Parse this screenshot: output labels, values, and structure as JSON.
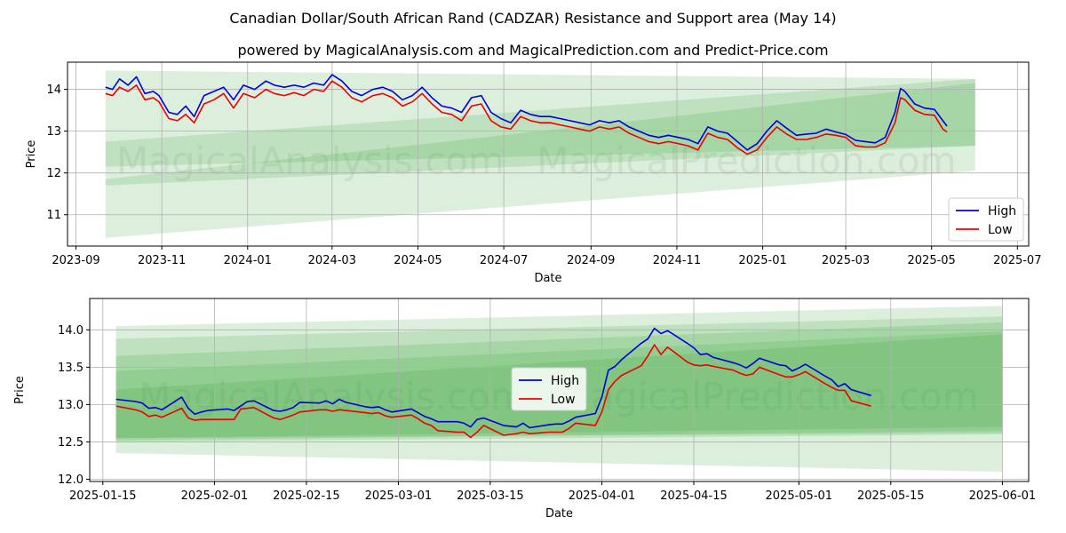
{
  "title": "Canadian Dollar/South African Rand (CADZAR) Resistance and Support area (May 14)",
  "subtitle": "powered by MagicalAnalysis.com and MagicalPrediction.com and Predict-Price.com",
  "watermarks": [
    "MagicalAnalysis.com",
    "MagicalPrediction.com"
  ],
  "colors": {
    "high": "#0000dd",
    "low": "#ee0000",
    "band": "#2e9e2e"
  },
  "chart_data": [
    {
      "type": "line",
      "xlabel": "Date",
      "ylabel": "Price",
      "xlim": [
        "2023-08-26",
        "2025-07-09"
      ],
      "ylim": [
        10.25,
        14.65
      ],
      "x_ticks": [
        "2023-09",
        "2023-11",
        "2024-01",
        "2024-03",
        "2024-05",
        "2024-07",
        "2024-09",
        "2024-11",
        "2025-01",
        "2025-03",
        "2025-05",
        "2025-07"
      ],
      "y_ticks": [
        11,
        12,
        13,
        14
      ],
      "grid": true,
      "legend": "lower-right",
      "band_range": [
        "2023-09-22",
        "2025-06-01"
      ],
      "bands": [
        {
          "start": [
            13.35,
            14.45
          ],
          "end": [
            13.95,
            14.25
          ]
        },
        {
          "start": [
            12.15,
            12.75
          ],
          "end": [
            12.65,
            14.25
          ]
        },
        {
          "start": [
            11.7,
            11.85
          ],
          "end": [
            12.65,
            14.15
          ]
        },
        {
          "start": [
            10.45,
            13.35
          ],
          "end": [
            12.05,
            13.95
          ]
        }
      ],
      "series": [
        {
          "name": "High",
          "x": [
            "2023-09-22",
            "2023-09-27",
            "2023-10-02",
            "2023-10-08",
            "2023-10-14",
            "2023-10-20",
            "2023-10-26",
            "2023-10-30",
            "2023-11-06",
            "2023-11-12",
            "2023-11-18",
            "2023-11-24",
            "2023-12-01",
            "2023-12-08",
            "2023-12-15",
            "2023-12-22",
            "2023-12-29",
            "2024-01-06",
            "2024-01-14",
            "2024-01-20",
            "2024-01-27",
            "2024-02-03",
            "2024-02-10",
            "2024-02-17",
            "2024-02-24",
            "2024-03-01",
            "2024-03-08",
            "2024-03-15",
            "2024-03-22",
            "2024-03-30",
            "2024-04-06",
            "2024-04-13",
            "2024-04-20",
            "2024-04-27",
            "2024-05-04",
            "2024-05-11",
            "2024-05-18",
            "2024-05-25",
            "2024-06-01",
            "2024-06-08",
            "2024-06-15",
            "2024-06-22",
            "2024-06-29",
            "2024-07-06",
            "2024-07-13",
            "2024-07-20",
            "2024-07-27",
            "2024-08-03",
            "2024-08-10",
            "2024-08-17",
            "2024-08-24",
            "2024-08-31",
            "2024-09-07",
            "2024-09-14",
            "2024-09-21",
            "2024-09-28",
            "2024-10-05",
            "2024-10-12",
            "2024-10-19",
            "2024-10-26",
            "2024-11-02",
            "2024-11-09",
            "2024-11-16",
            "2024-11-23",
            "2024-11-30",
            "2024-12-07",
            "2024-12-14",
            "2024-12-21",
            "2024-12-28",
            "2025-01-04",
            "2025-01-11",
            "2025-01-18",
            "2025-01-25",
            "2025-02-01",
            "2025-02-08",
            "2025-02-15",
            "2025-02-22",
            "2025-03-01",
            "2025-03-08",
            "2025-03-15",
            "2025-03-22",
            "2025-03-29",
            "2025-04-05",
            "2025-04-09",
            "2025-04-12",
            "2025-04-19",
            "2025-04-26",
            "2025-05-03",
            "2025-05-09",
            "2025-05-12"
          ],
          "values": [
            14.05,
            14.0,
            14.25,
            14.1,
            14.3,
            13.9,
            13.95,
            13.85,
            13.45,
            13.4,
            13.6,
            13.35,
            13.85,
            13.95,
            14.05,
            13.75,
            14.1,
            14.0,
            14.2,
            14.1,
            14.05,
            14.1,
            14.05,
            14.15,
            14.1,
            14.35,
            14.2,
            13.95,
            13.85,
            14.0,
            14.05,
            13.95,
            13.75,
            13.85,
            14.05,
            13.8,
            13.6,
            13.55,
            13.45,
            13.8,
            13.85,
            13.45,
            13.3,
            13.2,
            13.5,
            13.4,
            13.35,
            13.35,
            13.3,
            13.25,
            13.2,
            13.15,
            13.25,
            13.2,
            13.25,
            13.1,
            13.0,
            12.9,
            12.85,
            12.9,
            12.85,
            12.8,
            12.7,
            13.1,
            13.0,
            12.95,
            12.75,
            12.55,
            12.7,
            13.0,
            13.25,
            13.07,
            12.9,
            12.93,
            12.95,
            13.05,
            12.98,
            12.92,
            12.78,
            12.75,
            12.72,
            12.85,
            13.45,
            14.02,
            13.95,
            13.65,
            13.55,
            13.52,
            13.25,
            13.12
          ]
        },
        {
          "name": "Low",
          "x": [
            "2023-09-22",
            "2023-09-27",
            "2023-10-02",
            "2023-10-08",
            "2023-10-14",
            "2023-10-20",
            "2023-10-26",
            "2023-10-30",
            "2023-11-06",
            "2023-11-12",
            "2023-11-18",
            "2023-11-24",
            "2023-12-01",
            "2023-12-08",
            "2023-12-15",
            "2023-12-22",
            "2023-12-29",
            "2024-01-06",
            "2024-01-14",
            "2024-01-20",
            "2024-01-27",
            "2024-02-03",
            "2024-02-10",
            "2024-02-17",
            "2024-02-24",
            "2024-03-01",
            "2024-03-08",
            "2024-03-15",
            "2024-03-22",
            "2024-03-30",
            "2024-04-06",
            "2024-04-13",
            "2024-04-20",
            "2024-04-27",
            "2024-05-04",
            "2024-05-11",
            "2024-05-18",
            "2024-05-25",
            "2024-06-01",
            "2024-06-08",
            "2024-06-15",
            "2024-06-22",
            "2024-06-29",
            "2024-07-06",
            "2024-07-13",
            "2024-07-20",
            "2024-07-27",
            "2024-08-03",
            "2024-08-10",
            "2024-08-17",
            "2024-08-24",
            "2024-08-31",
            "2024-09-07",
            "2024-09-14",
            "2024-09-21",
            "2024-09-28",
            "2024-10-05",
            "2024-10-12",
            "2024-10-19",
            "2024-10-26",
            "2024-11-02",
            "2024-11-09",
            "2024-11-16",
            "2024-11-23",
            "2024-11-30",
            "2024-12-07",
            "2024-12-14",
            "2024-12-21",
            "2024-12-28",
            "2025-01-04",
            "2025-01-11",
            "2025-01-18",
            "2025-01-25",
            "2025-02-01",
            "2025-02-08",
            "2025-02-15",
            "2025-02-22",
            "2025-03-01",
            "2025-03-08",
            "2025-03-15",
            "2025-03-22",
            "2025-03-29",
            "2025-04-05",
            "2025-04-09",
            "2025-04-12",
            "2025-04-19",
            "2025-04-26",
            "2025-05-03",
            "2025-05-09",
            "2025-05-12"
          ],
          "values": [
            13.9,
            13.85,
            14.05,
            13.95,
            14.1,
            13.75,
            13.8,
            13.7,
            13.3,
            13.25,
            13.4,
            13.2,
            13.65,
            13.75,
            13.9,
            13.55,
            13.9,
            13.8,
            14.0,
            13.9,
            13.85,
            13.92,
            13.85,
            14.0,
            13.95,
            14.2,
            14.05,
            13.8,
            13.7,
            13.85,
            13.9,
            13.8,
            13.6,
            13.7,
            13.9,
            13.65,
            13.45,
            13.4,
            13.25,
            13.6,
            13.65,
            13.25,
            13.1,
            13.05,
            13.35,
            13.25,
            13.2,
            13.2,
            13.15,
            13.1,
            13.05,
            13.0,
            13.1,
            13.05,
            13.1,
            12.95,
            12.85,
            12.75,
            12.7,
            12.75,
            12.7,
            12.65,
            12.55,
            12.95,
            12.85,
            12.8,
            12.6,
            12.45,
            12.55,
            12.85,
            13.1,
            12.93,
            12.8,
            12.8,
            12.85,
            12.93,
            12.9,
            12.85,
            12.65,
            12.62,
            12.62,
            12.72,
            13.2,
            13.8,
            13.75,
            13.5,
            13.4,
            13.38,
            13.05,
            12.98
          ]
        }
      ]
    },
    {
      "type": "line",
      "xlabel": "Date",
      "ylabel": "Price",
      "xlim": [
        "2025-01-13",
        "2025-06-05"
      ],
      "ylim": [
        11.97,
        14.42
      ],
      "x_ticks": [
        "2025-01-15",
        "2025-02-01",
        "2025-02-15",
        "2025-03-01",
        "2025-03-15",
        "2025-04-01",
        "2025-04-15",
        "2025-05-01",
        "2025-05-15",
        "2025-06-01"
      ],
      "y_ticks": [
        "12.0",
        "12.5",
        "13.0",
        "13.5",
        "14.0"
      ],
      "grid": true,
      "legend": "center",
      "band_range": [
        "2025-01-17",
        "2025-06-01"
      ],
      "bands": [
        {
          "start": [
            12.35,
            14.05
          ],
          "end": [
            12.1,
            14.32
          ]
        },
        {
          "start": [
            12.5,
            13.88
          ],
          "end": [
            12.6,
            14.18
          ]
        },
        {
          "start": [
            12.52,
            13.65
          ],
          "end": [
            12.65,
            14.1
          ]
        },
        {
          "start": [
            12.55,
            13.45
          ],
          "end": [
            12.7,
            13.98
          ]
        },
        {
          "start": [
            12.55,
            13.2
          ],
          "end": [
            12.62,
            13.94
          ]
        }
      ],
      "series": [
        {
          "name": "High",
          "x": [
            "2025-01-17",
            "2025-01-20",
            "2025-01-21",
            "2025-01-22",
            "2025-01-23",
            "2025-01-24",
            "2025-01-27",
            "2025-01-28",
            "2025-01-29",
            "2025-01-30",
            "2025-01-31",
            "2025-02-03",
            "2025-02-04",
            "2025-02-05",
            "2025-02-06",
            "2025-02-07",
            "2025-02-10",
            "2025-02-11",
            "2025-02-12",
            "2025-02-13",
            "2025-02-14",
            "2025-02-17",
            "2025-02-18",
            "2025-02-19",
            "2025-02-20",
            "2025-02-21",
            "2025-02-24",
            "2025-02-25",
            "2025-02-26",
            "2025-02-27",
            "2025-02-28",
            "2025-03-03",
            "2025-03-04",
            "2025-03-05",
            "2025-03-06",
            "2025-03-07",
            "2025-03-10",
            "2025-03-11",
            "2025-03-12",
            "2025-03-13",
            "2025-03-14",
            "2025-03-17",
            "2025-03-18",
            "2025-03-19",
            "2025-03-20",
            "2025-03-21",
            "2025-03-24",
            "2025-03-25",
            "2025-03-26",
            "2025-03-27",
            "2025-03-28",
            "2025-03-31",
            "2025-04-01",
            "2025-04-02",
            "2025-04-03",
            "2025-04-04",
            "2025-04-07",
            "2025-04-08",
            "2025-04-09",
            "2025-04-10",
            "2025-04-11",
            "2025-04-14",
            "2025-04-15",
            "2025-04-16",
            "2025-04-17",
            "2025-04-18",
            "2025-04-21",
            "2025-04-22",
            "2025-04-23",
            "2025-04-24",
            "2025-04-25",
            "2025-04-28",
            "2025-04-29",
            "2025-04-30",
            "2025-05-01",
            "2025-05-02",
            "2025-05-05",
            "2025-05-06",
            "2025-05-07",
            "2025-05-08",
            "2025-05-09",
            "2025-05-12"
          ],
          "values": [
            13.07,
            13.04,
            13.02,
            12.95,
            12.96,
            12.93,
            13.1,
            12.95,
            12.87,
            12.9,
            12.92,
            12.94,
            12.92,
            12.98,
            13.04,
            13.05,
            12.92,
            12.91,
            12.93,
            12.96,
            13.03,
            13.02,
            13.05,
            13.01,
            13.07,
            13.03,
            12.97,
            12.96,
            12.97,
            12.93,
            12.9,
            12.94,
            12.89,
            12.84,
            12.81,
            12.77,
            12.77,
            12.75,
            12.7,
            12.8,
            12.82,
            12.72,
            12.71,
            12.7,
            12.75,
            12.69,
            12.73,
            12.74,
            12.74,
            12.78,
            12.83,
            12.88,
            13.1,
            13.46,
            13.51,
            13.6,
            13.82,
            13.88,
            14.02,
            13.95,
            13.99,
            13.82,
            13.76,
            13.67,
            13.68,
            13.63,
            13.56,
            13.53,
            13.49,
            13.55,
            13.62,
            13.53,
            13.52,
            13.45,
            13.49,
            13.54,
            13.38,
            13.33,
            13.24,
            13.28,
            13.2,
            13.12
          ]
        },
        {
          "name": "Low",
          "x": [
            "2025-01-17",
            "2025-01-20",
            "2025-01-21",
            "2025-01-22",
            "2025-01-23",
            "2025-01-24",
            "2025-01-27",
            "2025-01-28",
            "2025-01-29",
            "2025-01-30",
            "2025-01-31",
            "2025-02-03",
            "2025-02-04",
            "2025-02-05",
            "2025-02-06",
            "2025-02-07",
            "2025-02-10",
            "2025-02-11",
            "2025-02-12",
            "2025-02-13",
            "2025-02-14",
            "2025-02-17",
            "2025-02-18",
            "2025-02-19",
            "2025-02-20",
            "2025-02-21",
            "2025-02-24",
            "2025-02-25",
            "2025-02-26",
            "2025-02-27",
            "2025-02-28",
            "2025-03-03",
            "2025-03-04",
            "2025-03-05",
            "2025-03-06",
            "2025-03-07",
            "2025-03-10",
            "2025-03-11",
            "2025-03-12",
            "2025-03-13",
            "2025-03-14",
            "2025-03-17",
            "2025-03-18",
            "2025-03-19",
            "2025-03-20",
            "2025-03-21",
            "2025-03-24",
            "2025-03-25",
            "2025-03-26",
            "2025-03-27",
            "2025-03-28",
            "2025-03-31",
            "2025-04-01",
            "2025-04-02",
            "2025-04-03",
            "2025-04-04",
            "2025-04-07",
            "2025-04-08",
            "2025-04-09",
            "2025-04-10",
            "2025-04-11",
            "2025-04-14",
            "2025-04-15",
            "2025-04-16",
            "2025-04-17",
            "2025-04-18",
            "2025-04-21",
            "2025-04-22",
            "2025-04-23",
            "2025-04-24",
            "2025-04-25",
            "2025-04-28",
            "2025-04-29",
            "2025-04-30",
            "2025-05-01",
            "2025-05-02",
            "2025-05-05",
            "2025-05-06",
            "2025-05-07",
            "2025-05-08",
            "2025-05-09",
            "2025-05-12"
          ],
          "values": [
            12.98,
            12.93,
            12.9,
            12.84,
            12.86,
            12.83,
            12.95,
            12.82,
            12.79,
            12.8,
            12.8,
            12.8,
            12.8,
            12.94,
            12.95,
            12.96,
            12.82,
            12.8,
            12.83,
            12.86,
            12.9,
            12.93,
            12.93,
            12.91,
            12.93,
            12.92,
            12.89,
            12.88,
            12.89,
            12.85,
            12.83,
            12.86,
            12.81,
            12.75,
            12.72,
            12.65,
            12.63,
            12.63,
            12.56,
            12.63,
            12.72,
            12.59,
            12.6,
            12.61,
            12.63,
            12.61,
            12.63,
            12.63,
            12.63,
            12.68,
            12.75,
            12.72,
            12.9,
            13.2,
            13.31,
            13.39,
            13.52,
            13.65,
            13.8,
            13.67,
            13.77,
            13.57,
            13.53,
            13.52,
            13.53,
            13.51,
            13.46,
            13.42,
            13.39,
            13.41,
            13.5,
            13.4,
            13.37,
            13.37,
            13.4,
            13.44,
            13.28,
            13.23,
            13.19,
            13.19,
            13.05,
            12.98
          ]
        }
      ]
    }
  ]
}
